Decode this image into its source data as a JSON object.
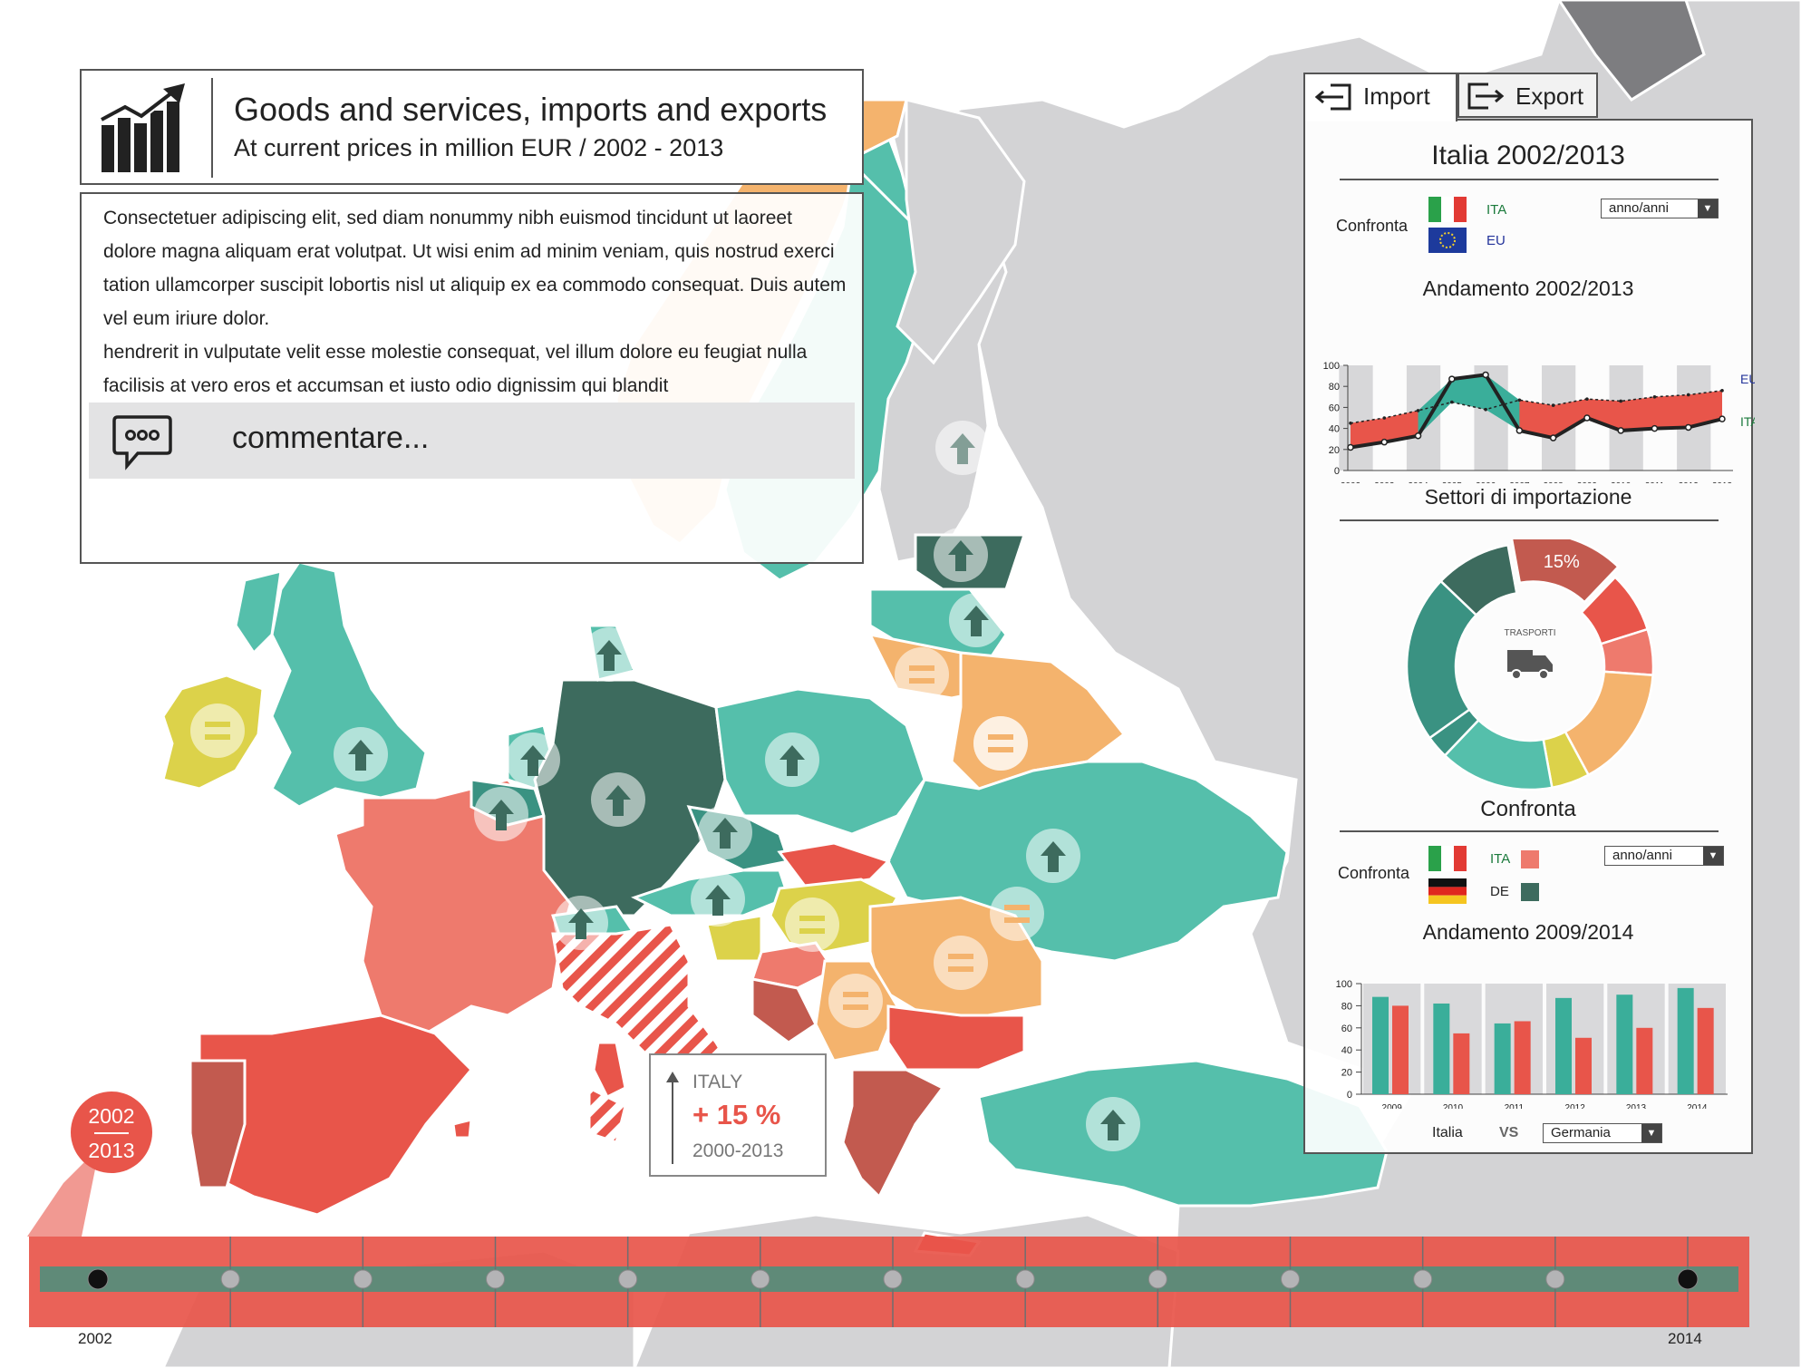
{
  "header": {
    "title": "Goods and services, imports and exports",
    "subtitle": "At current prices in million EUR / 2002 - 2013",
    "icon": "rising-bar-chart-icon"
  },
  "description": {
    "paragraph1": "Consectetuer adipiscing elit, sed diam nonummy nibh euismod tincidunt ut laoreet dolore magna aliquam erat volutpat. Ut wisi enim ad minim veniam, quis nostrud exerci tation ullamcorper suscipit lobortis nisl ut aliquip ex ea commodo consequat. Duis autem vel eum iriure dolor.",
    "paragraph2": "hendrerit in vulputate velit esse molestie consequat, vel illum dolore eu feugiat nulla facilisis at vero eros et accumsan et iusto odio dignissim qui blandit"
  },
  "comment": {
    "label": "commentare...",
    "icon": "speech-bubble-icon"
  },
  "tabs": [
    {
      "label": "Import",
      "icon": "import-arrow-icon",
      "active": true
    },
    {
      "label": "Export",
      "icon": "export-arrow-icon",
      "active": false
    }
  ],
  "side_panel": {
    "title": "Italia 2002/2013",
    "compare1": {
      "label": "Confronta",
      "items": [
        {
          "code": "ITA",
          "color": "#1b7a3c"
        },
        {
          "code": "EU",
          "color": "#23339a"
        }
      ],
      "dropdown": "anno/anni"
    },
    "trend_title": "Andamento 2002/2013",
    "sectors_title": "Settori di importazione",
    "sector_center_label": "TRASPORTI",
    "sector_highlight_label": "15%",
    "compare2_title": "Confronta",
    "compare2": {
      "label": "Confronta",
      "items": [
        {
          "code": "ITA",
          "swatch": "#e8554a"
        },
        {
          "code": "DE",
          "swatch": "#3d6b5e"
        }
      ],
      "dropdown": "anno/anni"
    },
    "bars_title": "Andamento 2009/2014",
    "vs": {
      "left": "Italia",
      "middle": "VS",
      "right": "Germania"
    }
  },
  "timeline": {
    "badge_start": "2002",
    "badge_end": "2013",
    "start_label": "2002",
    "end_label": "2014",
    "markers": 13,
    "selected_start_index": 0,
    "selected_end_index": 12
  },
  "callout": {
    "country": "ITALY",
    "value": "+ 15 %",
    "period": "2000-2013"
  },
  "map": {
    "colors": {
      "teal": "#55bfab",
      "dark_teal": "#3d6b5e",
      "mid_teal": "#3a9282",
      "orange": "#f4b36d",
      "salmon": "#ee7a6d",
      "red": "#e8554a",
      "brick": "#c25a4f",
      "yellow": "#dcd24a",
      "grey": "#d3d3d5"
    },
    "indicator_icons": [
      "up-arrow-icon",
      "equal-icon"
    ]
  },
  "chart_data": [
    {
      "type": "area",
      "title": "Andamento 2002/2013",
      "x": [
        "2002",
        "2003",
        "2004",
        "2005",
        "2006",
        "2007",
        "2008",
        "2009",
        "2010",
        "2011",
        "2012",
        "2013"
      ],
      "ylim": [
        0,
        100
      ],
      "yticks": [
        0,
        20,
        40,
        60,
        80,
        100
      ],
      "series": [
        {
          "name": "EU",
          "values": [
            45,
            50,
            57,
            65,
            58,
            67,
            62,
            68,
            66,
            70,
            72,
            76
          ],
          "color": "#e8554a"
        },
        {
          "name": "ITA",
          "values": [
            22,
            27,
            33,
            87,
            91,
            38,
            31,
            50,
            38,
            40,
            41,
            49
          ],
          "color": "#222222"
        }
      ]
    },
    {
      "type": "pie",
      "title": "Settori di importazione",
      "center_label": "TRASPORTI",
      "slices": [
        {
          "label": "15%",
          "value": 15,
          "color": "#c25a4f"
        },
        {
          "value": 8,
          "color": "#e8554a"
        },
        {
          "value": 6,
          "color": "#ee7a6d"
        },
        {
          "value": 16,
          "color": "#f4b36d"
        },
        {
          "value": 5,
          "color": "#dcd24a"
        },
        {
          "value": 15,
          "color": "#55bfab"
        },
        {
          "value": 3,
          "color": "#3a9282"
        },
        {
          "value": 22,
          "color": "#3a9282"
        },
        {
          "value": 10,
          "color": "#3d6b5e"
        }
      ]
    },
    {
      "type": "bar",
      "title": "Andamento 2009/2014",
      "categories": [
        "2009",
        "2010",
        "2011",
        "2012",
        "2013",
        "2014"
      ],
      "ylim": [
        0,
        100
      ],
      "yticks": [
        0,
        20,
        40,
        60,
        80,
        100
      ],
      "series": [
        {
          "name": "DE",
          "values": [
            88,
            82,
            64,
            87,
            90,
            96
          ],
          "color": "#3aae9a"
        },
        {
          "name": "ITA",
          "values": [
            80,
            55,
            66,
            51,
            60,
            78
          ],
          "color": "#e8554a"
        }
      ]
    }
  ]
}
